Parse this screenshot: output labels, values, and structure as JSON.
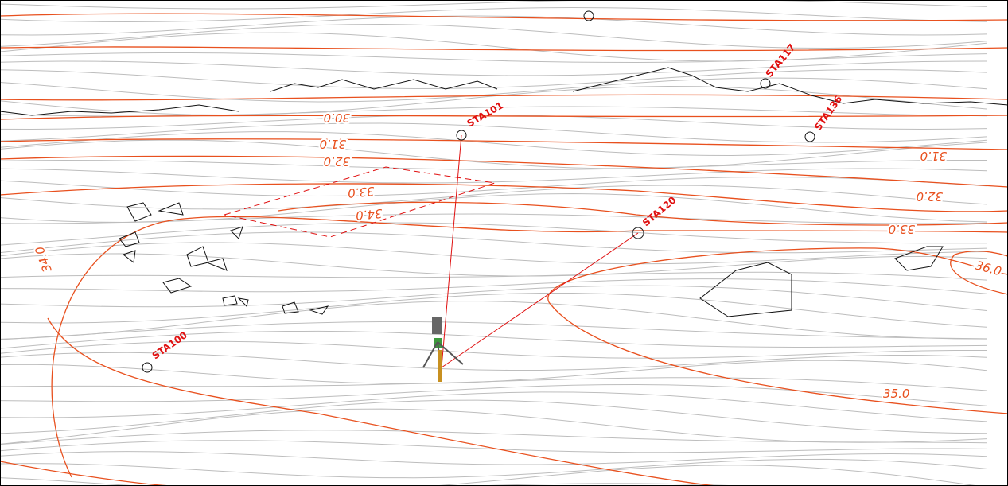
{
  "stations": [
    {
      "label": "STA101"
    },
    {
      "label": "STA120"
    },
    {
      "label": "STA100"
    },
    {
      "label": "STA117"
    },
    {
      "label": "STA136"
    }
  ],
  "contour_labels": [
    {
      "label": "30.0"
    },
    {
      "label": "31.0"
    },
    {
      "label": "32.0"
    },
    {
      "label": "33.0"
    },
    {
      "label": "34.0"
    },
    {
      "label": "31.0"
    },
    {
      "label": "32.0"
    },
    {
      "label": "33.0"
    },
    {
      "label": "35.0"
    },
    {
      "label": "34.0"
    },
    {
      "label": "36.0"
    }
  ]
}
